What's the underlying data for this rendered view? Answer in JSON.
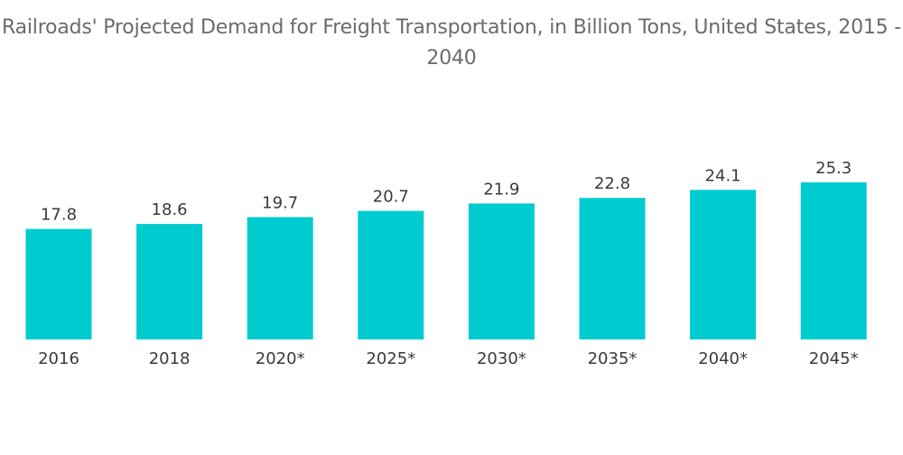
{
  "chart_data": {
    "type": "bar",
    "title": "Railroads' Projected Demand for Freight Transportation, in Billion Tons, United States, 2015 - 2040",
    "categories": [
      "2016",
      "2018",
      "2020*",
      "2025*",
      "2030*",
      "2035*",
      "2040*",
      "2045*"
    ],
    "values": [
      17.8,
      18.6,
      19.7,
      20.7,
      21.9,
      22.8,
      24.1,
      25.3
    ],
    "value_labels": [
      "17.8",
      "18.6",
      "19.7",
      "20.7",
      "21.9",
      "22.8",
      "24.1",
      "25.3"
    ],
    "xlabel": "",
    "ylabel": "",
    "ylim": [
      0,
      25.3
    ],
    "grid": false,
    "legend": "none",
    "bar_color": "#00cccf"
  }
}
